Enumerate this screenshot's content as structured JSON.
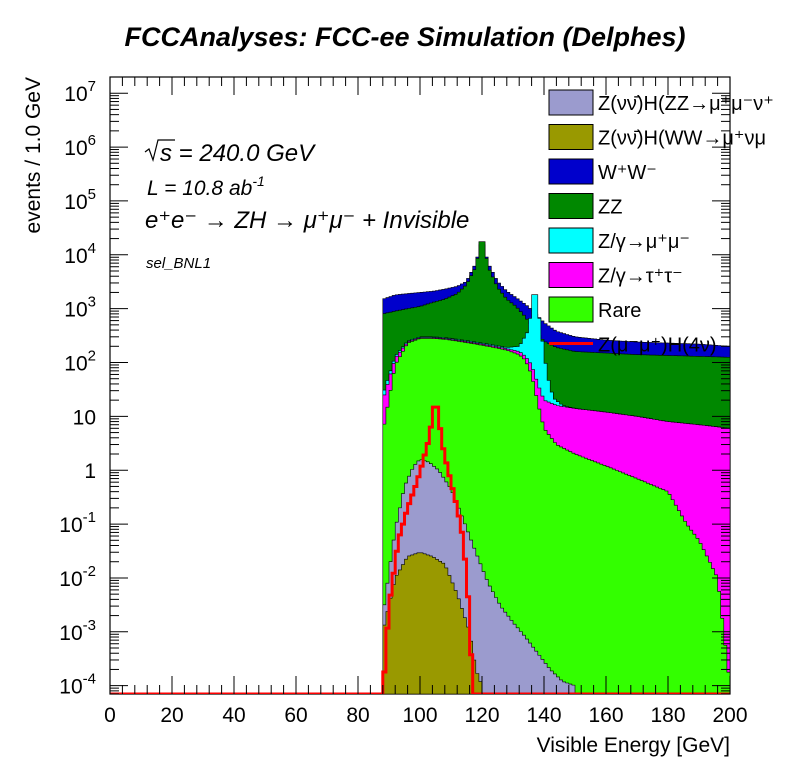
{
  "chart_data": {
    "type": "histogram",
    "title": "FCCAnalyses: FCC-ee Simulation (Delphes)",
    "xlabel": "Visible Energy [GeV]",
    "ylabel": "events / 1.0 GeV",
    "xlim": [
      0,
      200
    ],
    "ylim": [
      7e-05,
      20000000
    ],
    "yscale": "log",
    "x_ticks": [
      0,
      20,
      40,
      60,
      80,
      100,
      120,
      140,
      160,
      180,
      200
    ],
    "y_ticks": [
      {
        "value": 0.0001,
        "base": "10",
        "exp": "-4"
      },
      {
        "value": 0.001,
        "base": "10",
        "exp": "-3"
      },
      {
        "value": 0.01,
        "base": "10",
        "exp": "-2"
      },
      {
        "value": 0.1,
        "base": "10",
        "exp": "-1"
      },
      {
        "value": 1,
        "base": "1",
        "exp": ""
      },
      {
        "value": 10,
        "base": "10",
        "exp": ""
      },
      {
        "value": 100,
        "base": "10",
        "exp": "2"
      },
      {
        "value": 1000,
        "base": "10",
        "exp": "3"
      },
      {
        "value": 10000,
        "base": "10",
        "exp": "4"
      },
      {
        "value": 100000,
        "base": "10",
        "exp": "5"
      },
      {
        "value": 1000000,
        "base": "10",
        "exp": "6"
      },
      {
        "value": 10000000,
        "base": "10",
        "exp": "7"
      }
    ],
    "annotations": {
      "sqrt_s": "s = 240.0 GeV",
      "lumi_base": "L = 10.8 ab",
      "lumi_exp": "-1",
      "process": "e⁺e⁻ → ZH → μ⁺μ⁻ + Invisible",
      "selection": "sel_BNL1"
    },
    "stack_order_bottom_to_top": [
      "ZnunuH_WW",
      "ZnunuH_ZZ",
      "Rare",
      "Ztautau",
      "Zmumu",
      "ZZ",
      "WW"
    ],
    "stacked_series": [
      {
        "key": "ZnunuH_ZZ",
        "label": "Z(νν̄)H(ZZ→μ⁺μ⁻ν⁺",
        "color": "#9b9bce",
        "points": [
          [
            88,
            0.002
          ],
          [
            92,
            0.08
          ],
          [
            95,
            0.5
          ],
          [
            98,
            1.2
          ],
          [
            100,
            1.6
          ],
          [
            103,
            1.4
          ],
          [
            106,
            1.0
          ],
          [
            110,
            0.45
          ],
          [
            114,
            0.12
          ],
          [
            118,
            0.03
          ],
          [
            122,
            0.008
          ],
          [
            126,
            0.003
          ],
          [
            130,
            0.0015
          ],
          [
            134,
            0.0008
          ],
          [
            138,
            0.0004
          ],
          [
            142,
            0.0002
          ],
          [
            146,
            0.00012
          ],
          [
            150,
            0.0001
          ]
        ]
      },
      {
        "key": "ZnunuH_WW",
        "label": "Z(νν̄)H(WW→μ⁺νμ",
        "color": "#999900",
        "points": [
          [
            88,
            0.001
          ],
          [
            92,
            0.01
          ],
          [
            96,
            0.025
          ],
          [
            100,
            0.03
          ],
          [
            104,
            0.025
          ],
          [
            108,
            0.018
          ],
          [
            112,
            0.005
          ],
          [
            116,
            0.001
          ],
          [
            118,
            0.0002
          ],
          [
            120,
            0.0001
          ]
        ]
      },
      {
        "key": "WW",
        "label": "W⁺W⁻",
        "color": "#0000cc",
        "points": [
          [
            88,
            1500
          ],
          [
            92,
            1800
          ],
          [
            96,
            1900
          ],
          [
            100,
            2000
          ],
          [
            104,
            2100
          ],
          [
            108,
            2300
          ],
          [
            112,
            2600
          ],
          [
            115,
            3200
          ],
          [
            118,
            7000
          ],
          [
            120,
            20000
          ],
          [
            122,
            7000
          ],
          [
            125,
            3200
          ],
          [
            128,
            2100
          ],
          [
            131,
            1600
          ],
          [
            134,
            1200
          ],
          [
            137,
            850
          ],
          [
            140,
            550
          ],
          [
            144,
            380
          ],
          [
            150,
            300
          ],
          [
            160,
            260
          ],
          [
            170,
            240
          ],
          [
            180,
            230
          ],
          [
            190,
            220
          ],
          [
            200,
            200
          ]
        ]
      },
      {
        "key": "ZZ",
        "label": "ZZ",
        "color": "#008800",
        "points": [
          [
            88,
            800
          ],
          [
            92,
            900
          ],
          [
            96,
            1000
          ],
          [
            100,
            1100
          ],
          [
            104,
            1300
          ],
          [
            108,
            1500
          ],
          [
            112,
            1900
          ],
          [
            115,
            2800
          ],
          [
            118,
            6000
          ],
          [
            120,
            25000
          ],
          [
            122,
            6000
          ],
          [
            125,
            2500
          ],
          [
            128,
            1500
          ],
          [
            131,
            1100
          ],
          [
            134,
            700
          ],
          [
            137,
            400
          ],
          [
            140,
            250
          ],
          [
            144,
            190
          ],
          [
            150,
            160
          ],
          [
            160,
            150
          ],
          [
            170,
            140
          ],
          [
            180,
            135
          ],
          [
            190,
            130
          ],
          [
            200,
            125
          ]
        ]
      },
      {
        "key": "Zmumu",
        "label": "Z/γ→μ⁺μ⁻",
        "color": "#00ffff",
        "points": [
          [
            88,
            25
          ],
          [
            92,
            130
          ],
          [
            96,
            250
          ],
          [
            100,
            300
          ],
          [
            104,
            300
          ],
          [
            108,
            290
          ],
          [
            112,
            270
          ],
          [
            116,
            250
          ],
          [
            120,
            230
          ],
          [
            124,
            210
          ],
          [
            128,
            190
          ],
          [
            132,
            200
          ],
          [
            135,
            400
          ],
          [
            137,
            3000
          ],
          [
            139,
            400
          ],
          [
            141,
            60
          ],
          [
            143,
            22
          ],
          [
            146,
            16
          ],
          [
            150,
            14
          ],
          [
            160,
            12
          ],
          [
            170,
            10
          ],
          [
            180,
            8
          ],
          [
            190,
            7
          ],
          [
            200,
            6
          ]
        ]
      },
      {
        "key": "Ztautau",
        "label": "Z/γ→τ⁺τ⁻",
        "color": "#ff00ff",
        "points": [
          [
            88,
            20
          ],
          [
            92,
            120
          ],
          [
            96,
            240
          ],
          [
            100,
            290
          ],
          [
            104,
            290
          ],
          [
            108,
            280
          ],
          [
            112,
            260
          ],
          [
            116,
            240
          ],
          [
            120,
            220
          ],
          [
            124,
            200
          ],
          [
            128,
            180
          ],
          [
            132,
            160
          ],
          [
            134,
            130
          ],
          [
            136,
            90
          ],
          [
            138,
            40
          ],
          [
            140,
            20
          ],
          [
            144,
            16
          ],
          [
            150,
            14
          ],
          [
            160,
            12
          ],
          [
            170,
            10
          ],
          [
            180,
            8
          ],
          [
            190,
            7
          ],
          [
            200,
            6
          ]
        ]
      },
      {
        "key": "Rare",
        "label": "Rare",
        "color": "#33ff00",
        "points": [
          [
            88,
            5
          ],
          [
            92,
            90
          ],
          [
            96,
            230
          ],
          [
            100,
            280
          ],
          [
            104,
            280
          ],
          [
            108,
            270
          ],
          [
            112,
            250
          ],
          [
            116,
            230
          ],
          [
            120,
            210
          ],
          [
            124,
            190
          ],
          [
            128,
            170
          ],
          [
            132,
            140
          ],
          [
            134,
            110
          ],
          [
            136,
            60
          ],
          [
            138,
            18
          ],
          [
            140,
            6
          ],
          [
            144,
            3
          ],
          [
            150,
            2
          ],
          [
            160,
            1.2
          ],
          [
            170,
            0.7
          ],
          [
            180,
            0.4
          ],
          [
            186,
            0.1
          ],
          [
            190,
            0.05
          ],
          [
            196,
            0.01
          ],
          [
            200,
            0.0001
          ]
        ]
      }
    ],
    "line_series": [
      {
        "key": "ZmumuH_inv",
        "label": "Z(μ⁻μ⁺)H(4ν)",
        "color": "#ff0000",
        "points": [
          [
            88,
            7e-05
          ],
          [
            90,
            0.003
          ],
          [
            93,
            0.05
          ],
          [
            96,
            0.2
          ],
          [
            99,
            0.6
          ],
          [
            101,
            1.5
          ],
          [
            103,
            4.0
          ],
          [
            104,
            10
          ],
          [
            105,
            22
          ],
          [
            106,
            10
          ],
          [
            107,
            3.5
          ],
          [
            108,
            1.8
          ],
          [
            110,
            0.6
          ],
          [
            112,
            0.2
          ],
          [
            114,
            0.05
          ],
          [
            116,
            0.002
          ],
          [
            117,
            7e-05
          ],
          [
            200,
            7e-05
          ]
        ]
      }
    ],
    "legend": {
      "placement": "top-right",
      "entries": [
        {
          "label": "Z(νν̄)H(ZZ→μ⁺μ⁻ν⁺",
          "color": "#9b9bce",
          "kind": "fill"
        },
        {
          "label": "Z(νν̄)H(WW→μ⁺νμ",
          "color": "#999900",
          "kind": "fill"
        },
        {
          "label": "W⁺W⁻",
          "color": "#0000cc",
          "kind": "fill"
        },
        {
          "label": "ZZ",
          "color": "#008800",
          "kind": "fill"
        },
        {
          "label": "Z/γ→μ⁺μ⁻",
          "color": "#00ffff",
          "kind": "fill"
        },
        {
          "label": "Z/γ→τ⁺τ⁻",
          "color": "#ff00ff",
          "kind": "fill"
        },
        {
          "label": "Rare",
          "color": "#33ff00",
          "kind": "fill"
        },
        {
          "label": "Z(μ⁻μ⁺)H(4ν)",
          "color": "#ff0000",
          "kind": "line"
        }
      ]
    }
  }
}
